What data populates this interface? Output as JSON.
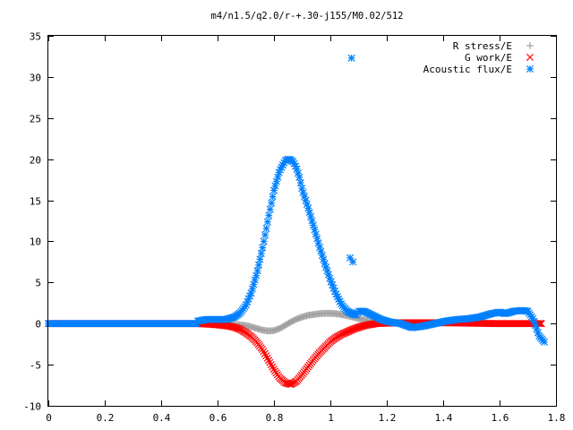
{
  "chart_data": {
    "type": "scatter",
    "title": "m4/n1.5/q2.0/r-+.30-j155/M0.02/512",
    "xlabel": "",
    "ylabel": "",
    "xlim": [
      0,
      1.8
    ],
    "ylim": [
      -10,
      35
    ],
    "x_ticks": [
      0,
      0.2,
      0.4,
      0.6,
      0.8,
      1,
      1.2,
      1.4,
      1.6,
      1.8
    ],
    "x_tick_labels": [
      "0",
      "0.2",
      "0.4",
      "0.6",
      "0.8",
      "1",
      "1.2",
      "1.4",
      "1.6",
      "1.8"
    ],
    "y_ticks": [
      -10,
      -5,
      0,
      5,
      10,
      15,
      20,
      25,
      30,
      35
    ],
    "y_tick_labels": [
      "-10",
      "-5",
      "0",
      "5",
      "10",
      "15",
      "20",
      "25",
      "30",
      "35"
    ],
    "grid": false,
    "legend_position": "top-right",
    "series": [
      {
        "name": "R stress/E",
        "marker": "plus",
        "color": "#a0a0a0",
        "x": [
          0.52,
          0.56,
          0.6,
          0.64,
          0.68,
          0.7,
          0.72,
          0.74,
          0.76,
          0.78,
          0.8,
          0.82,
          0.84,
          0.86,
          0.88,
          0.9,
          0.92,
          0.94,
          0.96,
          0.98,
          1.0,
          1.02,
          1.04,
          1.06,
          1.08,
          1.1,
          1.12,
          1.14,
          1.16,
          1.18,
          1.2
        ],
        "y": [
          0,
          0,
          0,
          -0.05,
          -0.15,
          -0.25,
          -0.4,
          -0.6,
          -0.8,
          -0.9,
          -0.85,
          -0.6,
          -0.2,
          0.2,
          0.55,
          0.8,
          1.0,
          1.1,
          1.2,
          1.25,
          1.25,
          1.2,
          1.1,
          0.95,
          0.8,
          0.6,
          0.45,
          0.3,
          0.2,
          0.1,
          0.05
        ]
      },
      {
        "name": "G work/E",
        "marker": "cross",
        "color": "#ff0000",
        "x": [
          0.52,
          0.56,
          0.6,
          0.64,
          0.66,
          0.68,
          0.7,
          0.72,
          0.74,
          0.76,
          0.78,
          0.8,
          0.82,
          0.84,
          0.86,
          0.88,
          0.9,
          0.92,
          0.94,
          0.96,
          0.98,
          1.0,
          1.02,
          1.04,
          1.06,
          1.08,
          1.1,
          1.12,
          1.14,
          1.16,
          1.2,
          1.25,
          1.3,
          1.35,
          1.4,
          1.45,
          1.5,
          1.55,
          1.6,
          1.65,
          1.7,
          1.75
        ],
        "y": [
          0,
          -0.05,
          -0.15,
          -0.3,
          -0.45,
          -0.7,
          -1.1,
          -1.6,
          -2.3,
          -3.2,
          -4.4,
          -5.6,
          -6.6,
          -7.2,
          -7.4,
          -7.0,
          -6.2,
          -5.3,
          -4.4,
          -3.6,
          -2.9,
          -2.2,
          -1.7,
          -1.3,
          -1.0,
          -0.7,
          -0.45,
          -0.25,
          -0.12,
          0.0,
          0.05,
          0.1,
          0.1,
          0.1,
          0.1,
          0.08,
          0.05,
          0.02,
          0.0,
          0.0,
          0.0,
          0.0
        ]
      },
      {
        "name": "Acoustic flux/E",
        "marker": "star",
        "color": "#0080ff",
        "x": [
          0.53,
          0.56,
          0.6,
          0.63,
          0.66,
          0.68,
          0.7,
          0.72,
          0.74,
          0.76,
          0.78,
          0.8,
          0.82,
          0.84,
          0.85,
          0.86,
          0.87,
          0.88,
          0.89,
          0.9,
          0.92,
          0.94,
          0.96,
          0.98,
          1.0,
          1.02,
          1.04,
          1.06,
          1.07,
          1.075,
          1.08,
          1.09,
          1.1,
          1.12,
          1.15,
          1.18,
          1.21,
          1.25,
          1.29,
          1.33,
          1.37,
          1.41,
          1.45,
          1.49,
          1.53,
          1.57,
          1.6,
          1.62,
          1.65,
          1.68,
          1.7,
          1.72,
          1.74,
          1.76
        ],
        "y": [
          0.3,
          0.5,
          0.5,
          0.5,
          0.8,
          1.3,
          2.2,
          3.8,
          6.2,
          9.3,
          12.8,
          16.2,
          18.6,
          19.8,
          20.0,
          19.9,
          19.6,
          18.9,
          17.8,
          16.3,
          14.2,
          11.9,
          9.5,
          7.3,
          5.3,
          3.6,
          2.3,
          1.5,
          8.0,
          32.3,
          7.5,
          1.0,
          1.5,
          1.5,
          1.0,
          0.5,
          0.2,
          0.0,
          -0.5,
          -0.3,
          0.0,
          0.3,
          0.5,
          0.6,
          0.8,
          1.2,
          1.4,
          1.2,
          1.5,
          1.6,
          1.5,
          0.5,
          -1.5,
          -2.3
        ]
      }
    ]
  }
}
